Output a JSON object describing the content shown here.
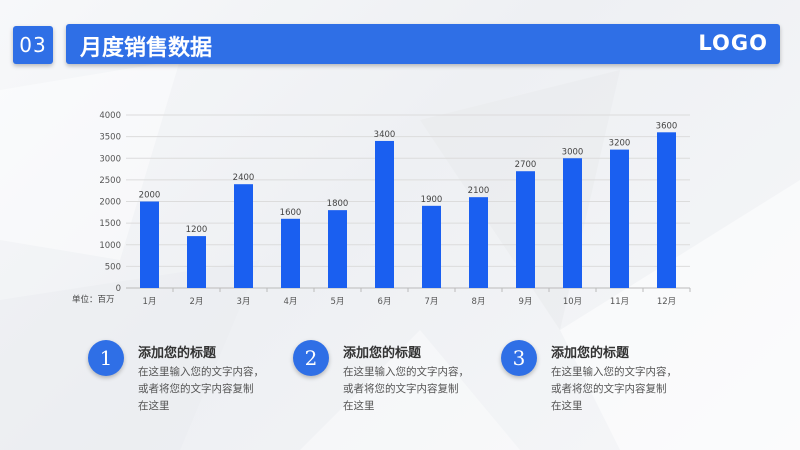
{
  "header": {
    "number": "03",
    "title": "月度销售数据",
    "logo": "LOGO"
  },
  "colors": {
    "accent": "#2f6fe6",
    "bar": "#1a5ff0"
  },
  "chart_data": {
    "type": "bar",
    "categories": [
      "1月",
      "2月",
      "3月",
      "4月",
      "5月",
      "6月",
      "7月",
      "8月",
      "9月",
      "10月",
      "11月",
      "12月"
    ],
    "values": [
      2000,
      1200,
      2400,
      1600,
      1800,
      3400,
      1900,
      2100,
      2700,
      3000,
      3200,
      3600
    ],
    "yticks": [
      0,
      500,
      1000,
      1500,
      2000,
      2500,
      3000,
      3500,
      4000
    ],
    "ylim": [
      0,
      4000
    ],
    "unit_label": "单位：百万",
    "grid": true
  },
  "features": [
    {
      "num": "1",
      "title": "添加您的标题",
      "body": "在这里输入您的文字内容，\n或者将您的文字内容复制\n在这里"
    },
    {
      "num": "2",
      "title": "添加您的标题",
      "body": "在这里输入您的文字内容，\n或者将您的文字内容复制\n在这里"
    },
    {
      "num": "3",
      "title": "添加您的标题",
      "body": "在这里输入您的文字内容，\n或者将您的文字内容复制\n在这里"
    }
  ]
}
